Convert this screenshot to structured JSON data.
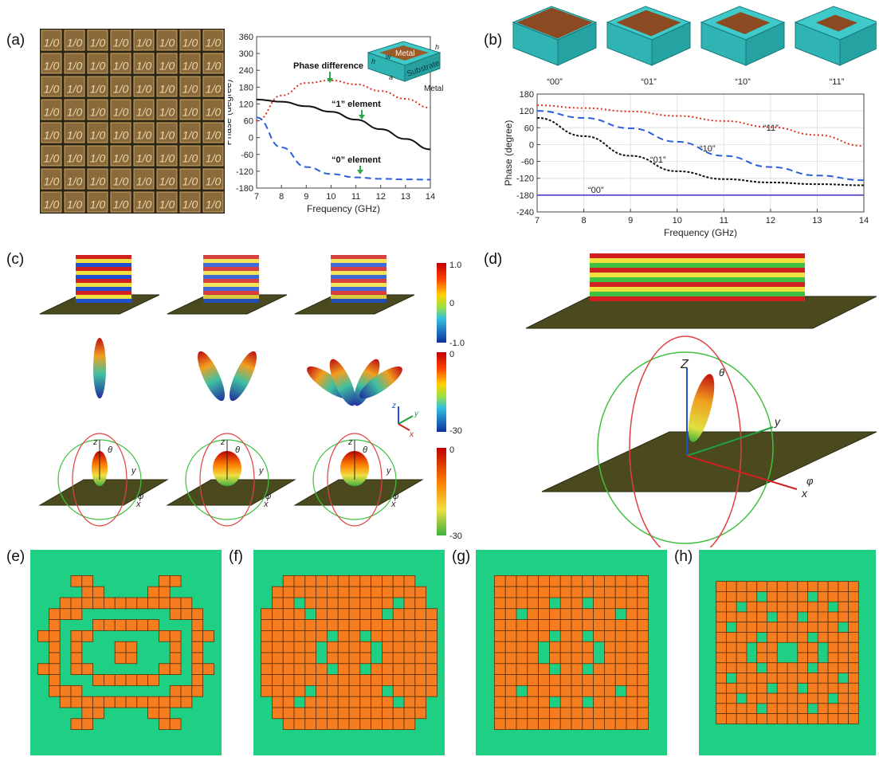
{
  "panels": {
    "a": "(a)",
    "b": "(b)",
    "c": "(c)",
    "d": "(d)",
    "e": "(e)",
    "f": "(f)",
    "g": "(g)",
    "h": "(h)"
  },
  "metasurface_a": {
    "cell_text": "1/0",
    "rows": 8,
    "cols": 8
  },
  "unit_cell_a": {
    "top": "Metal",
    "middle": "Substrate",
    "bottom": "Metal",
    "dims": [
      "h",
      "w",
      "a",
      "h"
    ]
  },
  "unit_cells_b": [
    "“00”",
    "“01”",
    "“10”",
    "“11”"
  ],
  "colorbars_c": {
    "field": [
      "1.0",
      "0",
      "-1.0"
    ],
    "far1": [
      "0",
      "-30"
    ],
    "far2": [
      "0",
      "-30"
    ]
  },
  "axes_c": {
    "z": "z",
    "y": "y",
    "x": "x",
    "theta": "θ",
    "phi": "φ"
  },
  "axes_d": {
    "z": "Z",
    "y": "y",
    "x": "x",
    "theta": "θ",
    "phi": "φ"
  },
  "chart_data": [
    {
      "type": "line",
      "xlabel": "Frequency (GHz)",
      "ylabel": "Phase (degree)",
      "xlim": [
        7,
        14
      ],
      "ylim": [
        -180,
        360
      ],
      "xticks": [
        "7",
        "8",
        "9",
        "10",
        "11",
        "12",
        "13",
        "14"
      ],
      "yticks": [
        "360",
        "300",
        "240",
        "180",
        "120",
        "60",
        "0",
        "-60",
        "-120",
        "-180"
      ],
      "annotations": [
        "Phase difference",
        "“1” element",
        "“0” element"
      ],
      "x": [
        7,
        8,
        9,
        10,
        11,
        12,
        13,
        14
      ],
      "series": [
        {
          "values": [
            136,
            128,
            112,
            92,
            64,
            30,
            -5,
            -42
          ],
          "color": "#111111",
          "dash": "solid"
        },
        {
          "values": [
            60,
            150,
            195,
            204,
            190,
            166,
            138,
            106
          ],
          "color": "#e0301e",
          "dash": "dot"
        },
        {
          "values": [
            72,
            -35,
            -105,
            -130,
            -142,
            -147,
            -149,
            -150
          ],
          "color": "#2c5fd8",
          "dash": "dash"
        }
      ]
    },
    {
      "type": "line",
      "xlabel": "Frequency (GHz)",
      "ylabel": "Phase (degree)",
      "xlim": [
        7,
        14
      ],
      "ylim": [
        -240,
        180
      ],
      "xticks": [
        "7",
        "8",
        "9",
        "10",
        "11",
        "12",
        "13",
        "14"
      ],
      "yticks": [
        "180",
        "120",
        "60",
        "0",
        "-60",
        "-120",
        "-180",
        "-240"
      ],
      "grid": true,
      "x": [
        7,
        8,
        9,
        10,
        11,
        12,
        13,
        14
      ],
      "series": [
        {
          "name": "“11”",
          "values": [
            140,
            130,
            118,
            102,
            84,
            62,
            34,
            -5
          ],
          "color": "#e0301e",
          "dash": "dot"
        },
        {
          "name": "“10”",
          "values": [
            120,
            95,
            58,
            10,
            -40,
            -80,
            -110,
            -127
          ],
          "color": "#2c5fd8",
          "dash": "dash"
        },
        {
          "name": "“01”",
          "values": [
            95,
            30,
            -40,
            -95,
            -123,
            -135,
            -141,
            -145
          ],
          "color": "#111111",
          "dash": "shortdot"
        },
        {
          "name": "“00”",
          "values": [
            -180,
            -180,
            -180,
            -180,
            -180,
            -180,
            -180,
            -180
          ],
          "color": "#6a5acd",
          "dash": "solid"
        }
      ]
    }
  ],
  "patterns": {
    "e": [
      "0000000000000000",
      "0001100000011000",
      "0000110000110000",
      "0011111111111100",
      "0111000000001110",
      "0100011111100010",
      "1101100000011011",
      "0101000110001010",
      "0101000110001010",
      "1101100000011011",
      "0100011111100010",
      "0111000000001110",
      "0011111111111100",
      "0000110000110000",
      "0001100000011000",
      "0000000000000000"
    ],
    "f": [
      "0000000000000000",
      "0011111111111100",
      "0111111111111110",
      "0110111111110110",
      "1111011111101111",
      "1111111111111111",
      "1111110110111111",
      "1111101111011111",
      "1111101111011111",
      "1111110110111111",
      "1111111111111111",
      "1111011111101111",
      "0110111111110110",
      "0111111111111110",
      "0011111111111100",
      "0000000000000000"
    ],
    "g": [
      "0000000000000000",
      "0111111111111110",
      "0111111111111110",
      "0111110110111110",
      "0110111111110110",
      "0111111111111110",
      "0111110110111110",
      "0111101111011110",
      "0111101111011110",
      "0111110110111110",
      "0111111111111110",
      "0110111111110110",
      "0111110110111110",
      "0111111111111110",
      "0111111111111110",
      "0000000000000000"
    ],
    "h": [
      "0000000000000000",
      "0111111111111110",
      "0111101111011110",
      "0110111111110110",
      "0111110110111110",
      "0101111111111010",
      "0111101111011110",
      "0111011001101110",
      "0111011001101110",
      "0111101111011110",
      "0101111111111010",
      "0111110110111110",
      "0110111111110110",
      "0111101111011110",
      "0111111111111110",
      "0000000000000000"
    ]
  }
}
